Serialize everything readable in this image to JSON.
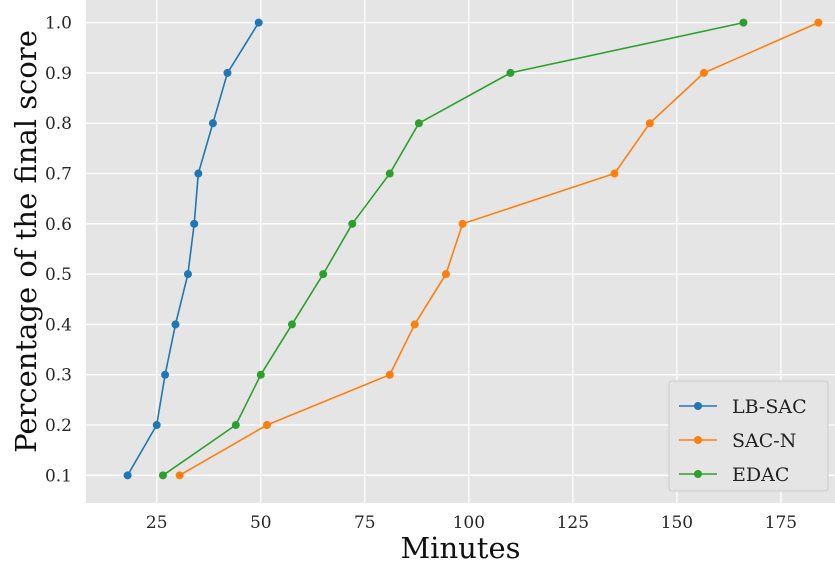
{
  "chart_data": {
    "type": "line",
    "xlabel": "Minutes",
    "ylabel": "Percentage of the final score",
    "xlim": [
      8,
      188
    ],
    "ylim": [
      0.045,
      1.045
    ],
    "x_ticks": [
      25,
      50,
      75,
      100,
      125,
      150,
      175
    ],
    "y_ticks": [
      0.1,
      0.2,
      0.3,
      0.4,
      0.5,
      0.6,
      0.7,
      0.8,
      0.9,
      1.0
    ],
    "x_tick_labels": [
      "25",
      "50",
      "75",
      "100",
      "125",
      "150",
      "175"
    ],
    "y_tick_labels": [
      "0.1",
      "0.2",
      "0.3",
      "0.4",
      "0.5",
      "0.6",
      "0.7",
      "0.8",
      "0.9",
      "1.0"
    ],
    "grid": true,
    "legend_position": "bottom-right",
    "series": [
      {
        "name": "LB-SAC",
        "color": "#1f77b4",
        "x": [
          18,
          25,
          27,
          29.5,
          32.5,
          34,
          35,
          38.5,
          42,
          49.5
        ],
        "y": [
          0.1,
          0.2,
          0.3,
          0.4,
          0.5,
          0.6,
          0.7,
          0.8,
          0.9,
          1.0
        ]
      },
      {
        "name": "SAC-N",
        "color": "#ff7f0e",
        "x": [
          30.5,
          51.5,
          81,
          87,
          94.5,
          98.5,
          135,
          143.5,
          156.5,
          184
        ],
        "y": [
          0.1,
          0.2,
          0.3,
          0.4,
          0.5,
          0.6,
          0.7,
          0.8,
          0.9,
          1.0
        ]
      },
      {
        "name": "EDAC",
        "color": "#2ca02c",
        "x": [
          26.5,
          44,
          50,
          57.5,
          65,
          72,
          81,
          88,
          110,
          166
        ],
        "y": [
          0.1,
          0.2,
          0.3,
          0.4,
          0.5,
          0.6,
          0.7,
          0.8,
          0.9,
          1.0
        ]
      }
    ]
  }
}
